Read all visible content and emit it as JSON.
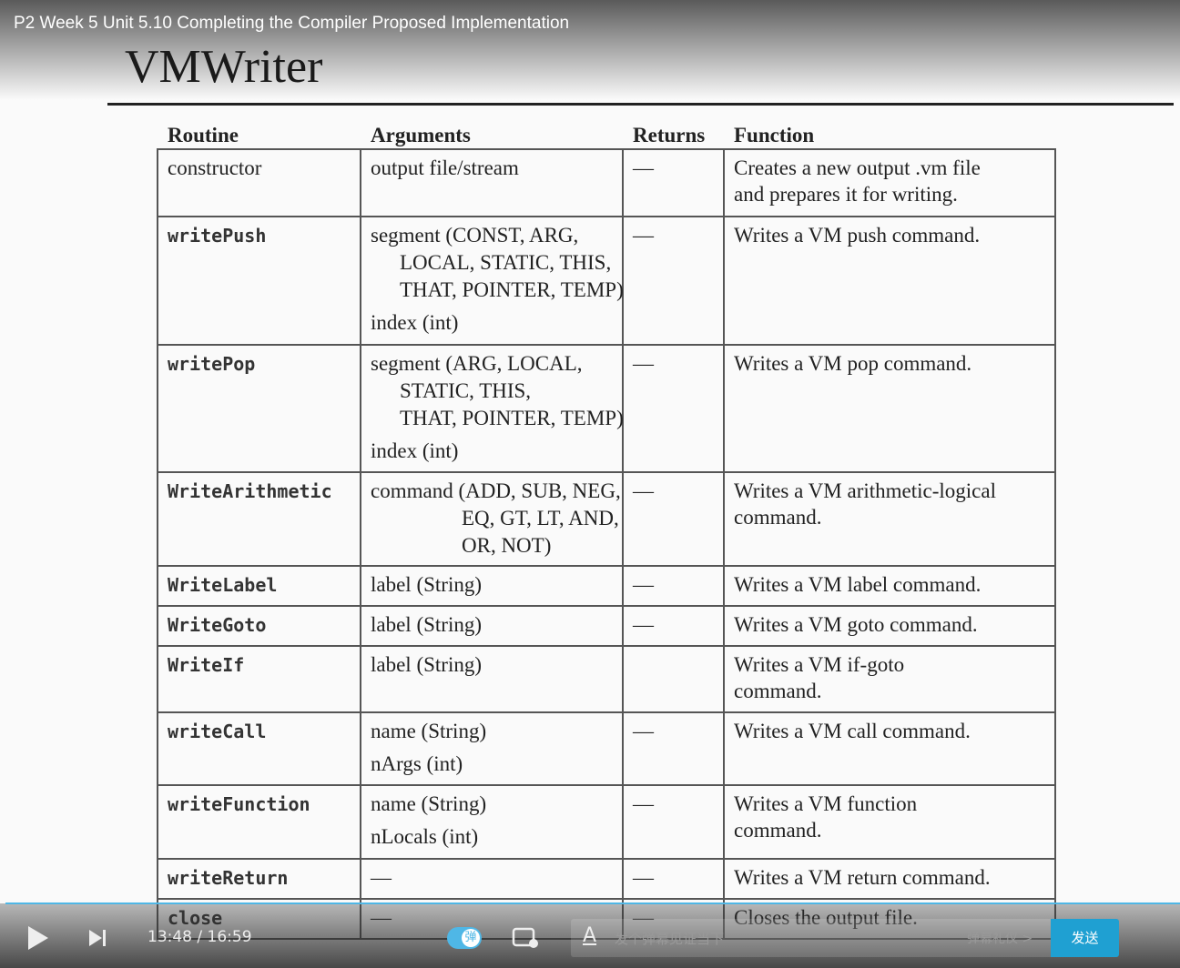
{
  "header": {
    "title": "P2 Week 5 Unit 5.10 Completing the Compiler Proposed Implementation"
  },
  "slide": {
    "title": "VMWriter"
  },
  "table": {
    "headers": [
      "Routine",
      "Arguments",
      "Returns",
      "Function"
    ],
    "rows": [
      {
        "routine": "constructor",
        "arguments": [
          [
            "output file/stream"
          ]
        ],
        "returns": "—",
        "function": [
          "Creates a new output .vm file",
          "and prepares it for writing."
        ]
      },
      {
        "routine": "writePush",
        "arguments": [
          [
            "segment (CONST, ARG,",
            "LOCAL, STATIC, THIS,",
            "THAT, POINTER, TEMP)"
          ],
          [
            "index (int)"
          ]
        ],
        "returns": "—",
        "function": [
          "Writes a VM push command."
        ]
      },
      {
        "routine": "writePop",
        "arguments": [
          [
            "segment (ARG, LOCAL,",
            "STATIC, THIS,",
            "THAT, POINTER, TEMP)"
          ],
          [
            "index (int)"
          ]
        ],
        "returns": "—",
        "function": [
          "Writes a VM pop command."
        ]
      },
      {
        "routine": "WriteArithmetic",
        "arguments": [
          [
            "command (ADD, SUB, NEG,",
            "EQ, GT, LT, AND,",
            "OR, NOT)"
          ]
        ],
        "returns": "—",
        "function": [
          "Writes a VM arithmetic-logical",
          "command."
        ]
      },
      {
        "routine": "WriteLabel",
        "arguments": [
          [
            "label (String)"
          ]
        ],
        "returns": "—",
        "function": [
          "Writes a VM label command."
        ]
      },
      {
        "routine": "WriteGoto",
        "arguments": [
          [
            "label (String)"
          ]
        ],
        "returns": "—",
        "function": [
          "Writes a VM goto command."
        ]
      },
      {
        "routine": "WriteIf",
        "arguments": [
          [
            "label (String)"
          ]
        ],
        "returns": null,
        "function": [
          "Writes a VM if-goto",
          "command."
        ]
      },
      {
        "routine": "writeCall",
        "arguments": [
          [
            "name (String)"
          ],
          [
            "nArgs (int)"
          ]
        ],
        "returns": "—",
        "function": [
          "Writes a VM call command."
        ]
      },
      {
        "routine": "writeFunction",
        "arguments": [
          [
            "name (String)"
          ],
          [
            "nLocals (int)"
          ]
        ],
        "returns": "—",
        "function": [
          "Writes a VM function",
          "command."
        ]
      },
      {
        "routine": "writeReturn",
        "arguments": [
          [
            "—"
          ]
        ],
        "returns": "—",
        "function": [
          "Writes a VM return command."
        ]
      },
      {
        "routine": "close",
        "arguments": [
          [
            "—"
          ]
        ],
        "returns": "—",
        "function": [
          "Closes the output file."
        ]
      }
    ]
  },
  "player": {
    "time": "13:48 / 16:59",
    "danmaku_toggle": "弹",
    "placeholder": "发个弹幕见证当下",
    "etiquette": "弹幕礼仪 >",
    "send": "发送"
  }
}
